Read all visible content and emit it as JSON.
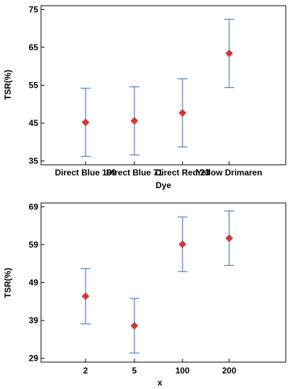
{
  "chart_data": [
    {
      "type": "scatter",
      "title": "",
      "xlabel": "Dye",
      "ylabel": "TSR(%)",
      "categories": [
        "Direct Blue 199",
        "Direct Blue 71",
        "Direct Red 23",
        "Yellow Drimaren"
      ],
      "values": [
        45.2,
        45.6,
        47.7,
        63.4
      ],
      "lower": [
        36.2,
        36.6,
        38.7,
        54.4
      ],
      "upper": [
        54.2,
        54.6,
        56.7,
        72.4
      ],
      "ylim": [
        34,
        76
      ],
      "yticks": [
        35,
        45,
        55,
        65,
        75
      ],
      "grid": false,
      "marker_color": "#d2373f",
      "errorbar_color": "#4a7ebb"
    },
    {
      "type": "scatter",
      "title": "",
      "xlabel": "x",
      "ylabel": "TSR(%)",
      "categories": [
        "2",
        "5",
        "100",
        "200"
      ],
      "values": [
        45.4,
        37.6,
        59.1,
        60.7
      ],
      "lower": [
        38.1,
        30.4,
        51.9,
        53.5
      ],
      "upper": [
        52.7,
        44.8,
        66.3,
        67.9
      ],
      "ylim": [
        28,
        70
      ],
      "yticks": [
        29,
        39,
        49,
        59,
        69
      ],
      "grid": false,
      "marker_color": "#d2373f",
      "errorbar_color": "#4a7ebb"
    }
  ]
}
